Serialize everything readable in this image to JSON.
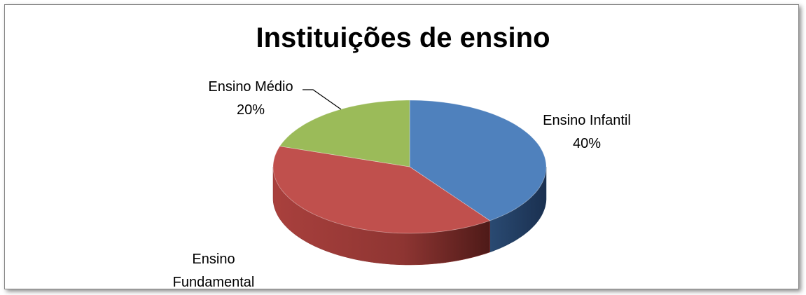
{
  "chart_data": {
    "type": "pie",
    "title": "Instituições de ensino",
    "categories": [
      "Ensino Infantil",
      "Ensino Fundamental",
      "Ensino Médio"
    ],
    "values": [
      40,
      40,
      20
    ],
    "value_labels": [
      "40%",
      null,
      "20%"
    ],
    "colors": [
      "#4f81bd",
      "#c0504d",
      "#9bbb59"
    ],
    "side_colors": [
      "#1f3a5c",
      "#8e3532",
      "#6b8a3a"
    ],
    "three_d": true
  }
}
